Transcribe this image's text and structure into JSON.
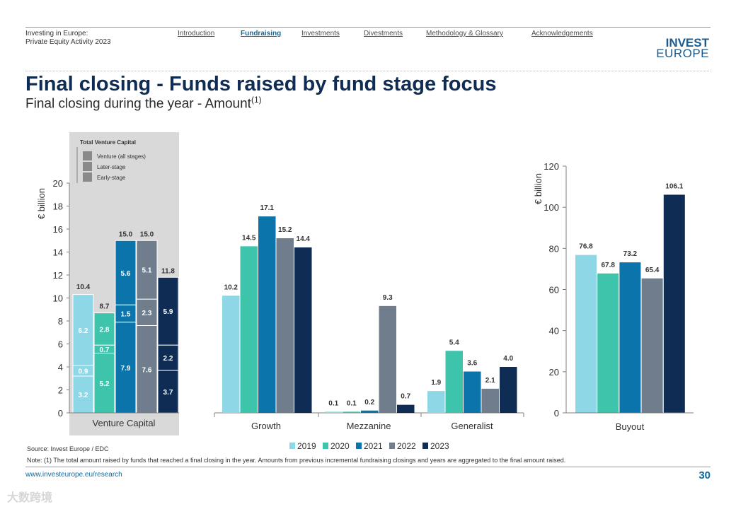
{
  "header": {
    "report_title_line1": "Investing in Europe:",
    "report_title_line2": "Private Equity Activity 2023",
    "tabs": [
      {
        "label": "Introduction",
        "active": false
      },
      {
        "label": "Fundraising",
        "active": true
      },
      {
        "label": "Investments",
        "active": false
      },
      {
        "label": "Divestments",
        "active": false
      },
      {
        "label": "Methodology & Glossary",
        "active": false
      },
      {
        "label": "Acknowledgements",
        "active": false
      }
    ],
    "logo_line1": "INVEST",
    "logo_line2": "EUROPE"
  },
  "title": "Final closing - Funds raised by fund stage focus",
  "subtitle": "Final closing during the year - Amount",
  "subtitle_sup": "(1)",
  "source": "Source: Invest Europe / EDC",
  "note": "Note: (1) The total amount raised by funds that reached a final closing in the year. Amounts from previous incremental fundraising closings and years are aggregated to the final amount raised.",
  "footer_url": "www.investeurope.eu/research",
  "page_number": "30",
  "watermark": "大数跨境",
  "colors": {
    "2019": "#8dd7e6",
    "2020": "#3fc4ac",
    "2021": "#0a74ab",
    "2022": "#707d8c",
    "2023": "#0f2c55",
    "vc_panel": "#d9d9d9"
  },
  "chart_data": [
    {
      "type": "stacked-bar",
      "title": "Venture Capital",
      "ylabel": "€ billion",
      "ylim": [
        0,
        20
      ],
      "yticks": [
        0,
        2,
        4,
        6,
        8,
        10,
        12,
        14,
        16,
        18,
        20
      ],
      "legend_title": "Total Venture Capital",
      "legend": [
        "Venture (all stages)",
        "Later-stage",
        "Early-stage"
      ],
      "categories": [
        "2019",
        "2020",
        "2021",
        "2022",
        "2023"
      ],
      "segments_order_bottom_to_top": [
        "Early-stage",
        "Later-stage",
        "Venture (all stages)"
      ],
      "series": [
        {
          "name": "Early-stage",
          "values": [
            3.2,
            5.2,
            7.9,
            7.6,
            3.7
          ]
        },
        {
          "name": "Later-stage",
          "values": [
            0.9,
            0.7,
            1.5,
            2.3,
            2.2
          ]
        },
        {
          "name": "Venture (all stages)",
          "values": [
            6.2,
            2.8,
            5.6,
            5.1,
            5.9
          ]
        }
      ],
      "totals": [
        10.4,
        8.7,
        15.0,
        15.0,
        11.8
      ],
      "total_labels": [
        "10.4",
        "8.7",
        "15.0",
        "15.0",
        "11.8"
      ]
    },
    {
      "type": "bar",
      "ylim": [
        0,
        20
      ],
      "groups": [
        "Growth",
        "Mezzanine",
        "Generalist"
      ],
      "series": [
        {
          "name": "2019",
          "values": [
            10.2,
            0.1,
            1.9
          ]
        },
        {
          "name": "2020",
          "values": [
            14.5,
            0.1,
            5.4
          ]
        },
        {
          "name": "2021",
          "values": [
            17.1,
            0.2,
            3.6
          ]
        },
        {
          "name": "2022",
          "values": [
            15.2,
            9.3,
            2.1
          ]
        },
        {
          "name": "2023",
          "values": [
            14.4,
            0.7,
            4.0
          ]
        }
      ],
      "legend": [
        "2019",
        "2020",
        "2021",
        "2022",
        "2023"
      ]
    },
    {
      "type": "bar",
      "title": "Buyout",
      "ylabel": "€ billion",
      "ylim": [
        0,
        120
      ],
      "yticks": [
        0,
        20,
        40,
        60,
        80,
        100,
        120
      ],
      "categories": [
        "2019",
        "2020",
        "2021",
        "2022",
        "2023"
      ],
      "values": [
        76.8,
        67.8,
        73.2,
        65.4,
        106.1
      ],
      "labels": [
        "76.8",
        "67.8",
        "73.2",
        "65.4",
        "106.1"
      ]
    }
  ]
}
